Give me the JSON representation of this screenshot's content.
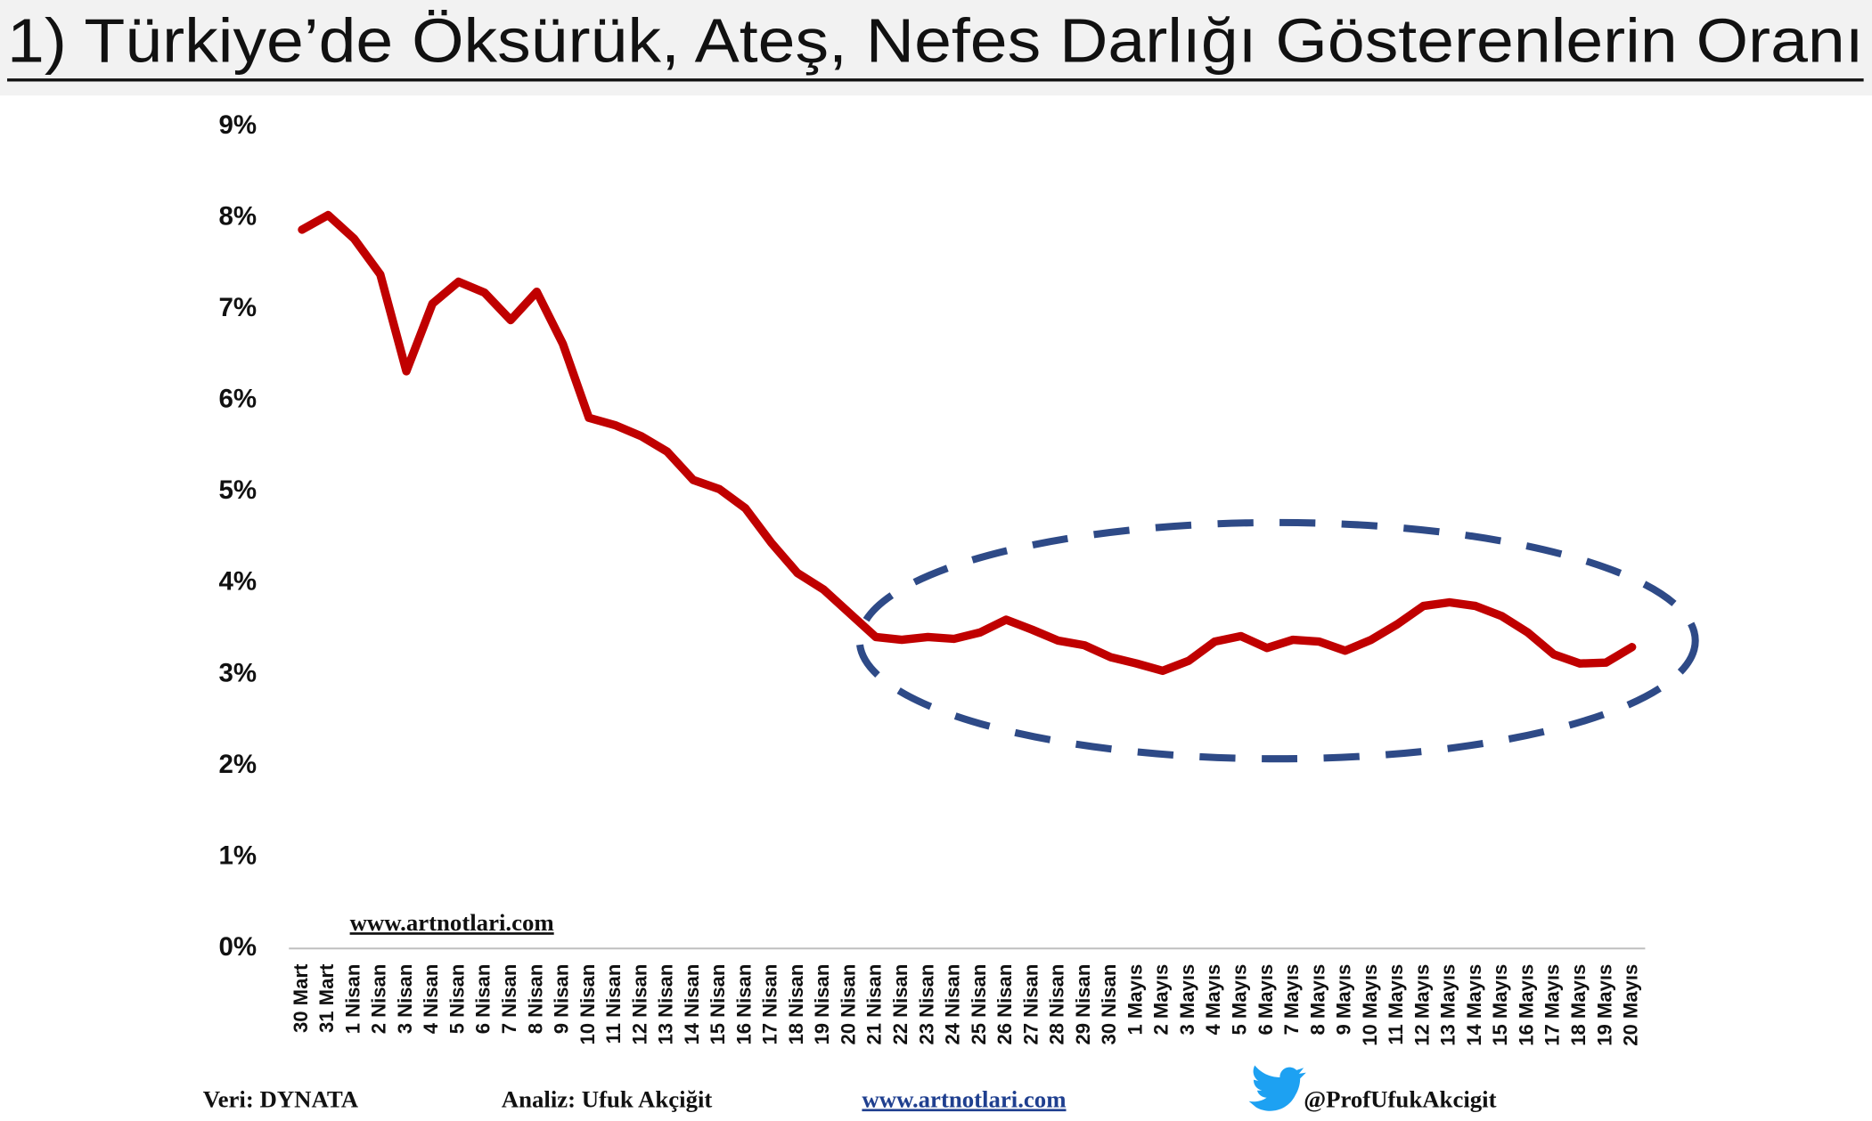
{
  "chart_data": {
    "type": "line",
    "title": "1) Türkiye’de Öksürük, Ateş, Nefes Darlığı Gösterenlerin Oranı",
    "watermark": "www.artnotlari.com",
    "categories": [
      "30 Mart",
      "31 Mart",
      "1 Nisan",
      "2 Nisan",
      "3 Nisan",
      "4 Nisan",
      "5 Nisan",
      "6 Nisan",
      "7 Nisan",
      "8 Nisan",
      "9 Nisan",
      "10 Nisan",
      "11 Nisan",
      "12 Nisan",
      "13 Nisan",
      "14 Nisan",
      "15 Nisan",
      "16 Nisan",
      "17 Nisan",
      "18 Nisan",
      "19 Nisan",
      "20 Nisan",
      "21 Nisan",
      "22 Nisan",
      "23 Nisan",
      "24 Nisan",
      "25 Nisan",
      "26 Nisan",
      "27 Nisan",
      "28 Nisan",
      "29 Nisan",
      "30 Nisan",
      "1 Mayıs",
      "2 Mayıs",
      "3 Mayıs",
      "4 Mayıs",
      "5 Mayıs",
      "6 Mayıs",
      "7 Mayıs",
      "8 Mayıs",
      "9 Mayıs",
      "10 Mayıs",
      "11 Mayıs",
      "12 Mayıs",
      "13 Mayıs",
      "14 Mayıs",
      "15 Mayıs",
      "16 Mayıs",
      "17 Mayıs",
      "18 Mayıs",
      "19 Mayıs",
      "20 Mayıs"
    ],
    "values": [
      7.87,
      8.03,
      7.77,
      7.38,
      6.32,
      7.06,
      7.3,
      7.18,
      6.88,
      7.19,
      6.62,
      5.81,
      5.73,
      5.61,
      5.44,
      5.13,
      5.03,
      4.82,
      4.44,
      4.11,
      3.93,
      3.67,
      3.41,
      3.38,
      3.41,
      3.39,
      3.46,
      3.6,
      3.49,
      3.37,
      3.32,
      3.19,
      3.12,
      3.04,
      3.15,
      3.36,
      3.42,
      3.29,
      3.38,
      3.36,
      3.26,
      3.38,
      3.55,
      3.75,
      3.79,
      3.75,
      3.64,
      3.46,
      3.22,
      3.12,
      3.13,
      3.3
    ],
    "color": "#c00000",
    "ylim": [
      0,
      9
    ],
    "yticks": [
      {
        "value": 0,
        "label": "0%"
      },
      {
        "value": 1,
        "label": "1%"
      },
      {
        "value": 2,
        "label": "2%"
      },
      {
        "value": 3,
        "label": "3%"
      },
      {
        "value": 4,
        "label": "4%"
      },
      {
        "value": 5,
        "label": "5%"
      },
      {
        "value": 6,
        "label": "6%"
      },
      {
        "value": 7,
        "label": "7%"
      },
      {
        "value": 8,
        "label": "8%"
      },
      {
        "value": 9,
        "label": "9%"
      }
    ],
    "grid": false
  },
  "footer": {
    "source": "Veri: DYNATA",
    "analysis": "Analiz: Ufuk Akçiğit",
    "website": "www.artnotlari.com",
    "twitter": "@ProfUfukAkcigit"
  }
}
